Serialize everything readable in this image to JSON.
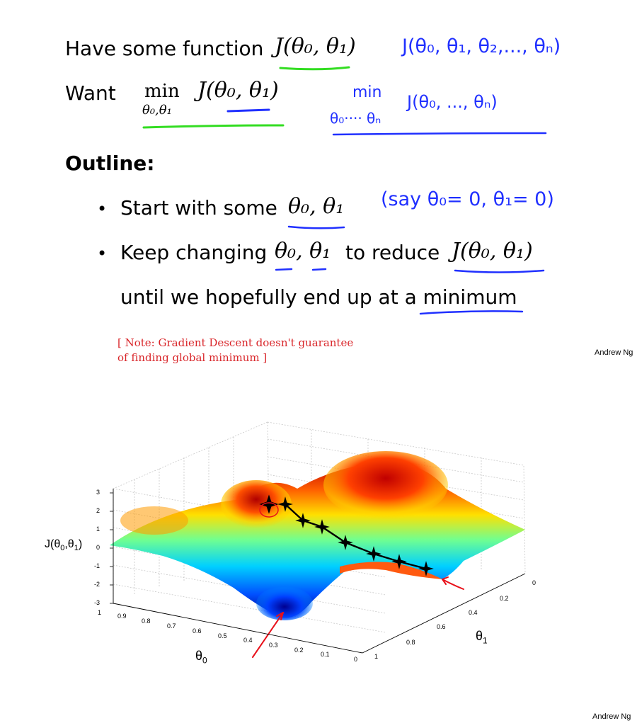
{
  "header": {
    "line1_text": "Have some function",
    "line1_formula": "J(θ₀, θ₁)",
    "line1_handwritten": "J(θ₀, θ₁, θ₂,..., θₙ)",
    "line2_text": "Want",
    "line2_min": "min",
    "line2_min_sub": "θ₀,θ₁",
    "line2_formula": "J(θ₀, θ₁)",
    "line2_handwritten_min": "min",
    "line2_handwritten_formula": "J(θ₀, ..., θₙ)",
    "line2_handwritten_sub": "θ₀···· θₙ"
  },
  "outline": {
    "heading": "Outline:",
    "bullet1_text": "Start with some",
    "bullet1_formula": "θ₀, θ₁",
    "bullet1_handwritten": "(say θ₀= 0, θ₁= 0)",
    "bullet2_text_a": "Keep changing",
    "bullet2_formula_a": "θ₀, θ₁",
    "bullet2_text_b": "to reduce",
    "bullet2_formula_b": "J(θ₀, θ₁)",
    "bullet2_line2": "until we hopefully end up at a minimum"
  },
  "note": "[ Note: Gradient Descent doesn't guarantee\nof finding global minimum ]",
  "credit_top": "Andrew Ng",
  "credit_bottom": "Andrew Ng",
  "plot": {
    "z_axis_label_main": "J(θ",
    "z_axis_label_sub0": "0",
    "z_axis_label_mid": ",θ",
    "z_axis_label_sub1": "1",
    "z_axis_label_end": ")",
    "x_axis_label": "θ",
    "x_axis_label_sub": "0",
    "y_axis_label": "θ",
    "y_axis_label_sub": "1",
    "z_ticks": [
      "3",
      "2",
      "1",
      "0",
      "-1",
      "-2",
      "-3"
    ],
    "x_ticks": [
      "1",
      "0.9",
      "0.8",
      "0.7",
      "0.6",
      "0.5",
      "0.4",
      "0.3",
      "0.2",
      "0.1",
      "0"
    ],
    "y_ticks": [
      "0",
      "0.2",
      "0.4",
      "0.6",
      "0.8",
      "1"
    ],
    "path_color": "#000000",
    "arrow_color": "#e8101a"
  },
  "colors": {
    "handwriting_blue": "#2030ff",
    "underline_green": "#33dd22",
    "note_red": "#d9262a"
  }
}
